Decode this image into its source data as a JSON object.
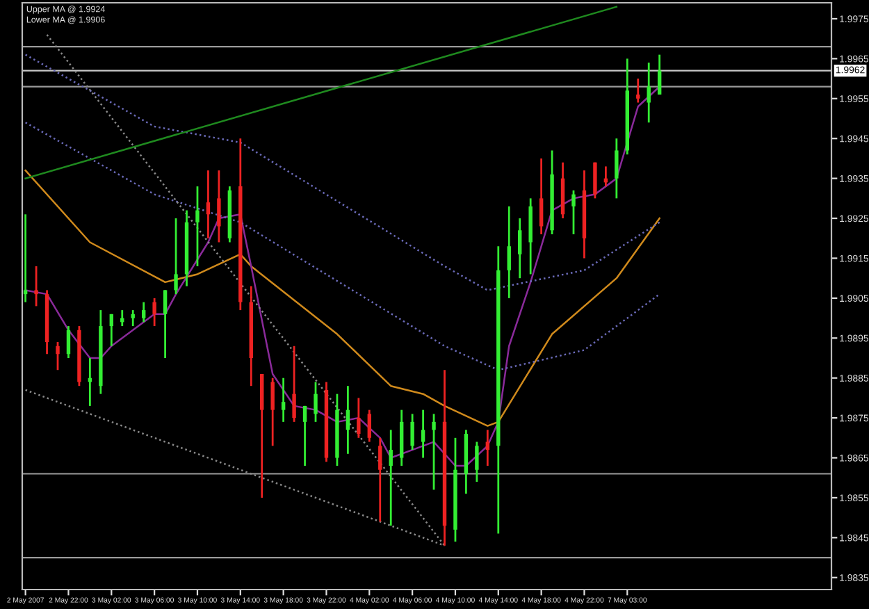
{
  "chart_data": {
    "type": "candlestick",
    "categories": [
      "2 May 2007",
      null,
      null,
      null,
      "2 May 22:00",
      null,
      null,
      null,
      "3 May 02:00",
      null,
      null,
      null,
      "3 May 06:00",
      null,
      null,
      null,
      "3 May 10:00",
      null,
      null,
      null,
      "3 May 14:00",
      null,
      null,
      null,
      "3 May 18:00",
      null,
      null,
      null,
      "3 May 22:00",
      null,
      null,
      null,
      "4 May 02:00",
      null,
      null,
      null,
      "4 May 06:00",
      null,
      null,
      null,
      "4 May 10:00",
      null,
      null,
      null,
      "4 May 14:00",
      null,
      null,
      null,
      "4 May 18:00",
      null,
      null,
      null,
      "4 May 22:00",
      null,
      null,
      null,
      "7 May 03:00",
      null,
      null,
      null,
      null,
      null,
      null,
      null,
      null,
      null,
      null,
      null,
      null,
      null,
      null,
      null,
      null,
      null,
      null
    ],
    "ohlc": [
      [
        1.9906,
        1.9926,
        1.9904,
        1.9907
      ],
      [
        1.9907,
        1.9913,
        1.9903,
        1.9906
      ],
      [
        1.9906,
        1.9907,
        1.9891,
        1.9894
      ],
      [
        1.9893,
        1.9894,
        1.9887,
        1.9891
      ],
      [
        1.9891,
        1.9898,
        1.989,
        1.9897
      ],
      [
        1.9897,
        1.9898,
        1.9883,
        1.9884
      ],
      [
        1.9884,
        1.989,
        1.9878,
        1.9885
      ],
      [
        1.9883,
        1.9902,
        1.9881,
        1.9898
      ],
      [
        1.9898,
        1.9901,
        1.9893,
        1.9901
      ],
      [
        1.9899,
        1.9902,
        1.9898,
        1.99
      ],
      [
        1.99,
        1.9902,
        1.9898,
        1.9901
      ],
      [
        1.99,
        1.9904,
        1.9899,
        1.9902
      ],
      [
        1.9904,
        1.9905,
        1.9898,
        1.9901
      ],
      [
        1.9901,
        1.9907,
        1.989,
        1.9907
      ],
      [
        1.9907,
        1.9925,
        1.9906,
        1.9911
      ],
      [
        1.9911,
        1.9927,
        1.9908,
        1.9924
      ],
      [
        1.9924,
        1.9933,
        1.9913,
        1.9927
      ],
      [
        1.9929,
        1.9937,
        1.992,
        1.9926
      ],
      [
        1.993,
        1.9937,
        1.9919,
        1.9923
      ],
      [
        1.992,
        1.9933,
        1.9919,
        1.9932
      ],
      [
        1.9933,
        1.9945,
        1.9902,
        1.9904
      ],
      [
        1.9904,
        1.9908,
        1.9883,
        1.989
      ],
      [
        1.9886,
        1.9886,
        1.9855,
        1.9877
      ],
      [
        1.9884,
        1.9885,
        1.9868,
        1.9877
      ],
      [
        1.9877,
        1.9885,
        1.9874,
        1.9879
      ],
      [
        1.9881,
        1.9893,
        1.9874,
        1.9875
      ],
      [
        1.9874,
        1.9878,
        1.9863,
        1.9878
      ],
      [
        1.9876,
        1.9884,
        1.9874,
        1.9881
      ],
      [
        1.9882,
        1.9884,
        1.9864,
        1.9865
      ],
      [
        1.9865,
        1.9881,
        1.9863,
        1.9877
      ],
      [
        1.9872,
        1.9883,
        1.9866,
        1.9877
      ],
      [
        1.9875,
        1.988,
        1.987,
        1.9871
      ],
      [
        1.9876,
        1.9877,
        1.9869,
        1.987
      ],
      [
        1.9868,
        1.987,
        1.9849,
        1.9862
      ],
      [
        1.9863,
        1.9872,
        1.9848,
        1.9867
      ],
      [
        1.9865,
        1.9877,
        1.9863,
        1.9874
      ],
      [
        1.9868,
        1.9876,
        1.9867,
        1.9874
      ],
      [
        1.9869,
        1.9877,
        1.9865,
        1.9872
      ],
      [
        1.9872,
        1.9876,
        1.9857,
        1.9874
      ],
      [
        1.9874,
        1.9887,
        1.9843,
        1.9848
      ],
      [
        1.9847,
        1.987,
        1.9844,
        1.9862
      ],
      [
        1.9861,
        1.9872,
        1.9856,
        1.9871
      ],
      [
        1.9862,
        1.9869,
        1.9859,
        1.9868
      ],
      [
        1.9869,
        1.9872,
        1.9863,
        1.9867
      ],
      [
        1.9868,
        1.9918,
        1.9846,
        1.9912
      ],
      [
        1.9912,
        1.9928,
        1.9905,
        1.9918
      ],
      [
        1.9916,
        1.9925,
        1.991,
        1.9922
      ],
      [
        1.9919,
        1.993,
        1.9911,
        1.9928
      ],
      [
        1.993,
        1.994,
        1.9921,
        1.9923
      ],
      [
        1.9922,
        1.9942,
        1.9921,
        1.9936
      ],
      [
        1.9935,
        1.9939,
        1.9925,
        1.9926
      ],
      [
        1.9928,
        1.9932,
        1.9921,
        1.9931
      ],
      [
        1.9932,
        1.9937,
        1.9915,
        1.992
      ],
      [
        1.9939,
        1.9939,
        1.993,
        1.9931
      ],
      [
        1.9935,
        1.9938,
        1.9933,
        1.9934
      ],
      [
        1.9935,
        1.9945,
        1.993,
        1.9942
      ],
      [
        1.9942,
        1.9965,
        1.9941,
        1.9957
      ],
      [
        1.9956,
        1.996,
        1.9954,
        1.9955
      ],
      [
        1.9954,
        1.9964,
        1.9949,
        1.9958
      ],
      [
        1.9956,
        1.9966,
        1.9956,
        1.9962
      ],
      null,
      null,
      null,
      null,
      null,
      null,
      null,
      null,
      null,
      null,
      null,
      null,
      null,
      null,
      null
    ],
    "colors": [
      "#33ee33",
      "#ee2222",
      "#ee2222",
      "#ee2222",
      "#33ee33",
      "#ee2222",
      "#33ee33",
      "#33ee33",
      "#33ee33",
      "#33ee33",
      "#33ee33",
      "#33ee33",
      "#ee2222",
      "#33ee33",
      "#33ee33",
      "#33ee33",
      "#33ee33",
      "#ee2222",
      "#ee2222",
      "#33ee33",
      "#ee2222",
      "#ee2222",
      "#ee2222",
      "#ee2222",
      "#33ee33",
      "#ee2222",
      "#33ee33",
      "#33ee33",
      "#ee2222",
      "#33ee33",
      "#33ee33",
      "#ee2222",
      "#ee2222",
      "#ee2222",
      "#33ee33",
      "#33ee33",
      "#33ee33",
      "#33ee33",
      "#33ee33",
      "#ee2222",
      "#33ee33",
      "#33ee33",
      "#33ee33",
      "#ee2222",
      "#33ee33",
      "#33ee33",
      "#33ee33",
      "#33ee33",
      "#ee2222",
      "#33ee33",
      "#ee2222",
      "#33ee33",
      "#ee2222",
      "#ee2222",
      "#ee2222",
      "#33ee33",
      "#33ee33",
      "#ee2222",
      "#33ee33",
      "#33ee33",
      null,
      null,
      null,
      null,
      null,
      null,
      null,
      null,
      null,
      null,
      null,
      null,
      null,
      null,
      null
    ],
    "series": [
      {
        "type": "line",
        "color": "#d08a1c",
        "line_style": "solid",
        "values": [
          1.9937,
          null,
          null,
          null,
          null,
          null,
          1.9919,
          null,
          null,
          null,
          null,
          null,
          null,
          1.9909,
          null,
          null,
          1.9911,
          null,
          null,
          null,
          1.9916,
          1.9913,
          null,
          null,
          null,
          null,
          null,
          null,
          null,
          1.9896,
          null,
          null,
          null,
          null,
          1.9883,
          null,
          null,
          1.9881,
          null,
          1.9878,
          null,
          null,
          null,
          1.9873,
          1.9874,
          null,
          null,
          null,
          null,
          1.9896,
          null,
          null,
          null,
          null,
          null,
          1.991,
          null,
          null,
          null,
          1.9925,
          null,
          null,
          null,
          null,
          null,
          null,
          null,
          null,
          null,
          null,
          null,
          null,
          null,
          null,
          null
        ]
      },
      {
        "type": "line",
        "color": "#8a2a9a",
        "line_style": "solid",
        "values": [
          1.9907,
          null,
          1.9906,
          null,
          1.9897,
          null,
          1.989,
          1.989,
          1.9893,
          null,
          null,
          null,
          1.9901,
          1.9901,
          1.9906,
          null,
          null,
          1.9919,
          1.9925,
          null,
          1.9926,
          1.9913,
          null,
          1.9886,
          null,
          1.9878,
          null,
          1.9877,
          null,
          1.9874,
          null,
          1.9875,
          null,
          1.987,
          1.9865,
          null,
          1.9867,
          null,
          1.9869,
          null,
          1.9863,
          1.9863,
          null,
          1.9868,
          1.9874,
          1.9893,
          null,
          1.9909,
          null,
          1.9927,
          null,
          1.993,
          null,
          1.9931,
          null,
          1.9935,
          1.9944,
          1.9953,
          null,
          1.9958,
          null,
          null,
          null,
          null,
          null,
          null,
          null,
          null,
          null,
          null,
          null,
          null,
          null,
          null,
          null
        ]
      },
      {
        "type": "line",
        "color": "#6a6ab8",
        "line_style": "dotted",
        "values": [
          1.9966,
          null,
          null,
          null,
          null,
          null,
          null,
          null,
          null,
          null,
          null,
          null,
          1.9948,
          null,
          null,
          null,
          null,
          null,
          null,
          null,
          1.9944,
          null,
          null,
          null,
          null,
          null,
          null,
          null,
          null,
          null,
          null,
          null,
          null,
          null,
          null,
          null,
          null,
          null,
          null,
          1.9913,
          null,
          null,
          null,
          1.9907,
          null,
          null,
          null,
          null,
          null,
          null,
          null,
          null,
          1.9912,
          null,
          null,
          null,
          null,
          null,
          null,
          1.9924,
          null,
          null,
          null,
          null,
          null,
          null,
          null,
          null,
          null,
          null,
          null,
          null,
          null,
          null,
          null
        ]
      },
      {
        "type": "line",
        "color": "#6a6ab8",
        "line_style": "dotted",
        "values": [
          1.9949,
          null,
          null,
          null,
          null,
          null,
          null,
          null,
          null,
          null,
          null,
          null,
          1.9931,
          null,
          null,
          null,
          null,
          null,
          null,
          null,
          1.9924,
          null,
          null,
          null,
          null,
          null,
          null,
          null,
          null,
          null,
          null,
          null,
          null,
          null,
          null,
          null,
          null,
          null,
          null,
          1.9893,
          null,
          null,
          null,
          null,
          1.9887,
          null,
          null,
          null,
          null,
          null,
          null,
          null,
          1.9892,
          null,
          null,
          null,
          null,
          null,
          null,
          1.9906,
          null,
          null,
          null,
          null,
          null,
          null,
          null,
          null,
          null,
          null,
          null,
          null,
          null,
          null,
          null
        ]
      },
      {
        "type": "line",
        "color": "#8a8a8a",
        "line_style": "dotted",
        "values": [
          null,
          null,
          1.9971,
          null,
          null,
          null,
          null,
          null,
          null,
          null,
          null,
          null,
          null,
          null,
          null,
          null,
          null,
          null,
          null,
          null,
          null,
          null,
          null,
          null,
          null,
          null,
          null,
          null,
          null,
          null,
          null,
          null,
          null,
          null,
          null,
          null,
          null,
          null,
          null,
          1.9843,
          null,
          null,
          null,
          null,
          null,
          null,
          null,
          null,
          null,
          null,
          null,
          null,
          null,
          null,
          null,
          null,
          null,
          null,
          null,
          null,
          null,
          null,
          null,
          null,
          null,
          null,
          null,
          null,
          null,
          null,
          null,
          null,
          null,
          null,
          null
        ]
      },
      {
        "type": "line",
        "color": "#8a8a8a",
        "line_style": "dotted",
        "values": [
          1.9882,
          null,
          null,
          null,
          null,
          null,
          null,
          null,
          null,
          null,
          null,
          null,
          null,
          null,
          null,
          null,
          null,
          null,
          null,
          null,
          null,
          null,
          null,
          null,
          null,
          null,
          null,
          null,
          null,
          null,
          null,
          null,
          null,
          null,
          null,
          null,
          null,
          null,
          null,
          1.9843,
          null,
          null,
          null,
          null,
          null,
          null,
          null,
          null,
          null,
          null,
          null,
          null,
          null,
          null,
          null,
          null,
          null,
          null,
          null,
          null,
          null,
          null,
          null,
          null,
          null,
          null,
          null,
          null,
          null,
          null,
          null,
          null,
          null,
          null,
          null
        ]
      },
      {
        "type": "line",
        "color": "#1f8a1f",
        "line_style": "solid",
        "values": [
          1.9935,
          null,
          null,
          null,
          null,
          null,
          null,
          null,
          null,
          null,
          null,
          null,
          null,
          null,
          null,
          null,
          null,
          null,
          null,
          null,
          null,
          null,
          null,
          null,
          null,
          null,
          null,
          null,
          null,
          null,
          null,
          null,
          null,
          null,
          null,
          null,
          null,
          null,
          null,
          null,
          null,
          null,
          null,
          null,
          null,
          null,
          null,
          null,
          null,
          null,
          null,
          null,
          null,
          null,
          null,
          1.9978,
          null,
          null,
          null,
          null,
          null,
          null,
          null,
          null,
          null,
          null,
          null,
          null,
          null,
          null,
          null,
          null,
          null,
          null,
          null
        ]
      }
    ],
    "ref_lines": [
      {
        "axis": "y",
        "value": 1.9968,
        "color": "#9a9a9a"
      },
      {
        "axis": "y",
        "value": 1.9962,
        "color": "#c8c8c8",
        "label": "1.9962"
      },
      {
        "axis": "y",
        "value": 1.9958,
        "color": "#9a9a9a"
      },
      {
        "axis": "y",
        "value": 1.9861,
        "color": "#9a9a9a"
      },
      {
        "axis": "y",
        "value": 1.984,
        "color": "#9a9a9a"
      }
    ],
    "annotations": [
      "Upper MA @ 1.9924",
      "Lower MA @ 1.9906"
    ],
    "ylim": [
      1.9832,
      1.9979
    ],
    "yticks": [
      1.9835,
      1.9845,
      1.9855,
      1.9865,
      1.9875,
      1.9885,
      1.9895,
      1.9905,
      1.9915,
      1.9925,
      1.9935,
      1.9945,
      1.9955,
      1.9965,
      1.9975
    ],
    "grid": false
  }
}
